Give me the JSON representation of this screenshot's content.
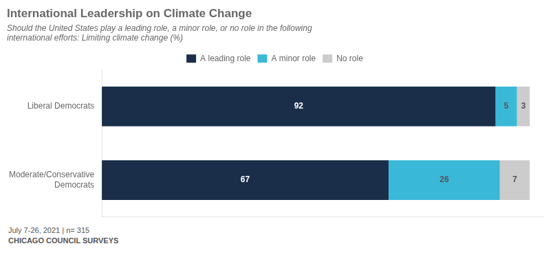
{
  "chart_data": {
    "type": "bar",
    "orientation": "horizontal",
    "stacked": true,
    "title": "International Leadership on Climate Change",
    "subtitle": [
      "Should the United States play a leading role, a minor role, or no role in the following",
      "international efforts: Limiting climate change (%)"
    ],
    "annotations": [
      "July 7-26, 2021 | n= 315",
      "CHICAGO COUNCIL SURVEYS"
    ],
    "categories": [
      "Liberal Democrats",
      "Moderate/Conservative\nDemocrats"
    ],
    "series": [
      {
        "name": "A leading role",
        "color": "#1a2e4a",
        "values": [
          92,
          67
        ]
      },
      {
        "name": "A minor role",
        "color": "#3ab8d8",
        "values": [
          5,
          26
        ]
      },
      {
        "name": "No role",
        "color": "#cccccc",
        "values": [
          3,
          7
        ]
      }
    ],
    "xlim": [
      0,
      103
    ],
    "grid": false,
    "legend": "top",
    "data_labels": true,
    "tick_labels": "y"
  }
}
